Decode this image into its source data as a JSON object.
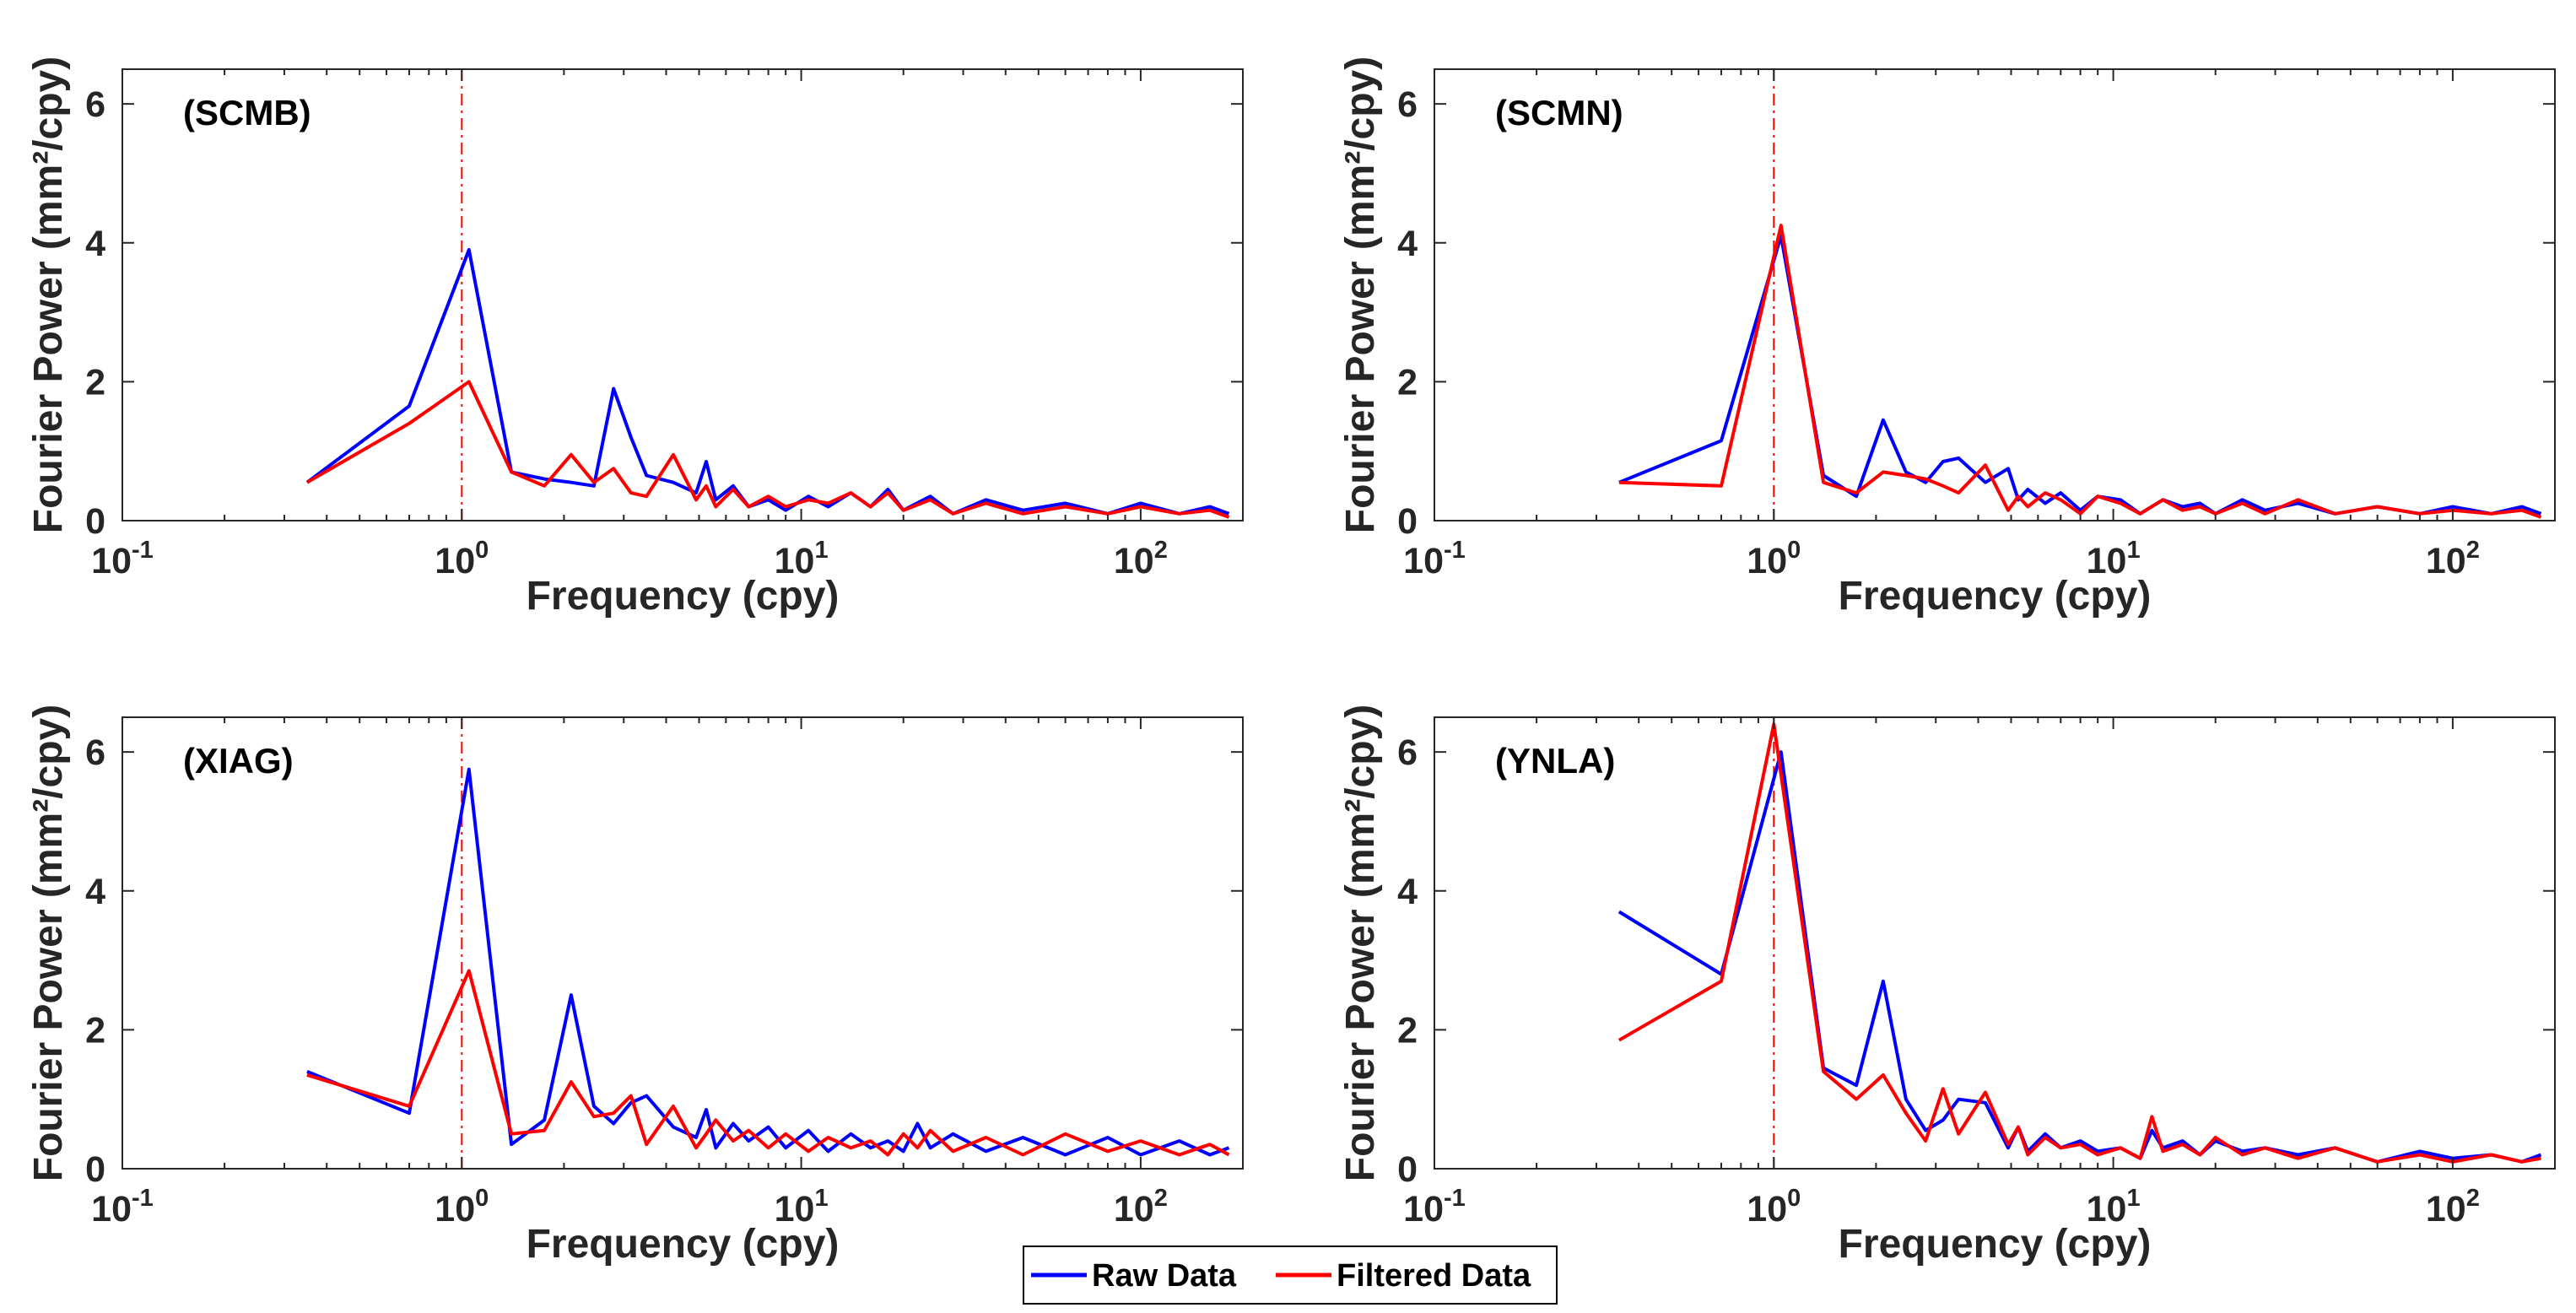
{
  "chart_data": [
    {
      "type": "line",
      "panel_label": "(SCMB)",
      "xlabel": "Frequency (cpy)",
      "ylabel": "Fourier Power (mm²/cpy)",
      "xscale": "log",
      "xlim": [
        0.1,
        200
      ],
      "ylim": [
        0,
        6.5
      ],
      "yticks": [
        "0",
        "2",
        "4",
        "6"
      ],
      "reference_line_x": 1.0,
      "series": [
        {
          "name": "Raw Data",
          "color": "#0000ff",
          "x": [
            0.35,
            0.7,
            1.05,
            1.4,
            1.75,
            2.1,
            2.45,
            2.8,
            3.15,
            3.5,
            4.2,
            4.9,
            5.25,
            5.6,
            6.3,
            7.0,
            8.0,
            9.0,
            10.5,
            12.0,
            14.0,
            16.0,
            18.0,
            20.0,
            24.0,
            28.0,
            35.0,
            45.0,
            60.0,
            80.0,
            100.0,
            130.0,
            160.0,
            182.0
          ],
          "y": [
            0.55,
            1.65,
            3.9,
            0.7,
            0.6,
            0.55,
            0.5,
            1.9,
            1.2,
            0.65,
            0.55,
            0.4,
            0.85,
            0.3,
            0.5,
            0.2,
            0.3,
            0.15,
            0.35,
            0.2,
            0.4,
            0.2,
            0.45,
            0.15,
            0.35,
            0.1,
            0.3,
            0.15,
            0.25,
            0.1,
            0.25,
            0.1,
            0.2,
            0.1
          ]
        },
        {
          "name": "Filtered Data",
          "color": "#ff0000",
          "x": [
            0.35,
            0.7,
            1.05,
            1.4,
            1.75,
            2.1,
            2.45,
            2.8,
            3.15,
            3.5,
            4.2,
            4.9,
            5.25,
            5.6,
            6.3,
            7.0,
            8.0,
            9.0,
            10.5,
            12.0,
            14.0,
            16.0,
            18.0,
            20.0,
            24.0,
            28.0,
            35.0,
            45.0,
            60.0,
            80.0,
            100.0,
            130.0,
            160.0,
            182.0
          ],
          "y": [
            0.55,
            1.4,
            2.0,
            0.7,
            0.5,
            0.95,
            0.55,
            0.75,
            0.4,
            0.35,
            0.95,
            0.3,
            0.5,
            0.2,
            0.45,
            0.2,
            0.35,
            0.2,
            0.3,
            0.25,
            0.4,
            0.2,
            0.4,
            0.15,
            0.3,
            0.1,
            0.25,
            0.1,
            0.2,
            0.1,
            0.2,
            0.1,
            0.15,
            0.05
          ]
        }
      ]
    },
    {
      "type": "line",
      "panel_label": "(SCMN)",
      "xlabel": "Frequency (cpy)",
      "ylabel": "Fourier Power (mm²/cpy)",
      "xscale": "log",
      "xlim": [
        0.1,
        200
      ],
      "ylim": [
        0,
        6.5
      ],
      "yticks": [
        "0",
        "2",
        "4",
        "6"
      ],
      "reference_line_x": 1.0,
      "series": [
        {
          "name": "Raw Data",
          "color": "#0000ff",
          "x": [
            0.35,
            0.7,
            1.05,
            1.4,
            1.75,
            2.1,
            2.45,
            2.8,
            3.15,
            3.5,
            4.2,
            4.9,
            5.25,
            5.6,
            6.3,
            7.0,
            8.0,
            9.0,
            10.5,
            12.0,
            14.0,
            16.0,
            18.0,
            20.0,
            24.0,
            28.0,
            35.0,
            45.0,
            60.0,
            80.0,
            100.0,
            130.0,
            160.0,
            182.0
          ],
          "y": [
            0.55,
            1.15,
            4.1,
            0.65,
            0.35,
            1.45,
            0.7,
            0.55,
            0.85,
            0.9,
            0.55,
            0.75,
            0.3,
            0.45,
            0.25,
            0.4,
            0.15,
            0.35,
            0.3,
            0.1,
            0.3,
            0.2,
            0.25,
            0.1,
            0.3,
            0.15,
            0.25,
            0.1,
            0.2,
            0.1,
            0.2,
            0.1,
            0.2,
            0.1
          ]
        },
        {
          "name": "Filtered Data",
          "color": "#ff0000",
          "x": [
            0.35,
            0.7,
            1.05,
            1.4,
            1.75,
            2.1,
            2.45,
            2.8,
            3.15,
            3.5,
            4.2,
            4.9,
            5.25,
            5.6,
            6.3,
            7.0,
            8.0,
            9.0,
            10.5,
            12.0,
            14.0,
            16.0,
            18.0,
            20.0,
            24.0,
            28.0,
            35.0,
            45.0,
            60.0,
            80.0,
            100.0,
            130.0,
            160.0,
            182.0
          ],
          "y": [
            0.55,
            0.5,
            4.25,
            0.55,
            0.4,
            0.7,
            0.65,
            0.6,
            0.5,
            0.4,
            0.8,
            0.15,
            0.35,
            0.2,
            0.4,
            0.3,
            0.1,
            0.35,
            0.25,
            0.1,
            0.3,
            0.15,
            0.2,
            0.1,
            0.25,
            0.1,
            0.3,
            0.1,
            0.2,
            0.1,
            0.15,
            0.1,
            0.15,
            0.05
          ]
        }
      ]
    },
    {
      "type": "line",
      "panel_label": "(XIAG)",
      "xlabel": "Frequency (cpy)",
      "ylabel": "Fourier Power (mm²/cpy)",
      "xscale": "log",
      "xlim": [
        0.1,
        200
      ],
      "ylim": [
        0,
        6.5
      ],
      "yticks": [
        "0",
        "2",
        "4",
        "6"
      ],
      "reference_line_x": 1.0,
      "series": [
        {
          "name": "Raw Data",
          "color": "#0000ff",
          "x": [
            0.35,
            0.7,
            1.05,
            1.4,
            1.75,
            2.1,
            2.45,
            2.8,
            3.15,
            3.5,
            4.2,
            4.9,
            5.25,
            5.6,
            6.3,
            7.0,
            8.0,
            9.0,
            10.5,
            12.0,
            14.0,
            16.0,
            18.0,
            20.0,
            22.0,
            24.0,
            28.0,
            35.0,
            45.0,
            60.0,
            80.0,
            100.0,
            130.0,
            160.0,
            182.0
          ],
          "y": [
            1.4,
            0.8,
            5.75,
            0.35,
            0.7,
            2.5,
            0.9,
            0.65,
            0.95,
            1.05,
            0.6,
            0.45,
            0.85,
            0.3,
            0.65,
            0.4,
            0.6,
            0.3,
            0.55,
            0.25,
            0.5,
            0.3,
            0.4,
            0.25,
            0.65,
            0.3,
            0.5,
            0.25,
            0.45,
            0.2,
            0.45,
            0.2,
            0.4,
            0.2,
            0.3
          ]
        },
        {
          "name": "Filtered Data",
          "color": "#ff0000",
          "x": [
            0.35,
            0.7,
            1.05,
            1.4,
            1.75,
            2.1,
            2.45,
            2.8,
            3.15,
            3.5,
            4.2,
            4.9,
            5.25,
            5.6,
            6.3,
            7.0,
            8.0,
            9.0,
            10.5,
            12.0,
            14.0,
            16.0,
            18.0,
            20.0,
            22.0,
            24.0,
            28.0,
            35.0,
            45.0,
            60.0,
            80.0,
            100.0,
            130.0,
            160.0,
            182.0
          ],
          "y": [
            1.35,
            0.9,
            2.85,
            0.5,
            0.55,
            1.25,
            0.75,
            0.8,
            1.05,
            0.35,
            0.9,
            0.3,
            0.5,
            0.7,
            0.4,
            0.55,
            0.3,
            0.5,
            0.25,
            0.45,
            0.3,
            0.4,
            0.2,
            0.5,
            0.3,
            0.55,
            0.25,
            0.45,
            0.2,
            0.5,
            0.25,
            0.4,
            0.2,
            0.35,
            0.2
          ]
        }
      ]
    },
    {
      "type": "line",
      "panel_label": "(YNLA)",
      "xlabel": "Frequency (cpy)",
      "ylabel": "Fourier Power (mm²/cpy)",
      "xscale": "log",
      "xlim": [
        0.1,
        200
      ],
      "ylim": [
        0,
        6.5
      ],
      "yticks": [
        "0",
        "2",
        "4",
        "6"
      ],
      "reference_line_x": 1.0,
      "series": [
        {
          "name": "Raw Data",
          "color": "#0000ff",
          "x": [
            0.35,
            0.7,
            1.05,
            1.4,
            1.75,
            2.1,
            2.45,
            2.8,
            3.15,
            3.5,
            4.2,
            4.9,
            5.25,
            5.6,
            6.3,
            7.0,
            8.0,
            9.0,
            10.5,
            12.0,
            13.0,
            14.0,
            16.0,
            18.0,
            20.0,
            24.0,
            28.0,
            35.0,
            45.0,
            60.0,
            80.0,
            100.0,
            130.0,
            160.0,
            182.0
          ],
          "y": [
            3.7,
            2.8,
            6.0,
            1.45,
            1.2,
            2.7,
            1.0,
            0.55,
            0.7,
            1.0,
            0.95,
            0.3,
            0.6,
            0.25,
            0.5,
            0.3,
            0.4,
            0.25,
            0.3,
            0.15,
            0.55,
            0.3,
            0.4,
            0.2,
            0.4,
            0.25,
            0.3,
            0.2,
            0.3,
            0.1,
            0.25,
            0.15,
            0.2,
            0.1,
            0.2
          ]
        },
        {
          "name": "Filtered Data",
          "color": "#ff0000",
          "x": [
            0.35,
            0.7,
            1.0,
            1.4,
            1.75,
            2.1,
            2.45,
            2.8,
            3.15,
            3.5,
            4.2,
            4.9,
            5.25,
            5.6,
            6.3,
            7.0,
            8.0,
            9.0,
            10.5,
            12.0,
            13.0,
            14.0,
            16.0,
            18.0,
            20.0,
            24.0,
            28.0,
            35.0,
            45.0,
            60.0,
            80.0,
            100.0,
            130.0,
            160.0,
            182.0
          ],
          "y": [
            1.85,
            2.7,
            6.4,
            1.4,
            1.0,
            1.35,
            0.8,
            0.4,
            1.15,
            0.5,
            1.1,
            0.35,
            0.6,
            0.2,
            0.45,
            0.3,
            0.35,
            0.2,
            0.3,
            0.15,
            0.75,
            0.25,
            0.35,
            0.2,
            0.45,
            0.2,
            0.3,
            0.15,
            0.3,
            0.1,
            0.2,
            0.1,
            0.2,
            0.1,
            0.15
          ]
        }
      ]
    }
  ],
  "legend": {
    "items": [
      {
        "label": "Raw Data",
        "color": "#0000ff"
      },
      {
        "label": "Filtered Data",
        "color": "#ff0000"
      }
    ]
  },
  "axis_text": {
    "x_tick_base": "10",
    "x_tick_exponents": [
      "-1",
      "0",
      "1",
      "2"
    ]
  },
  "colors": {
    "raw": "#0000ff",
    "filtered": "#ff0000",
    "reference": "#ff0000",
    "axes": "#262626"
  }
}
